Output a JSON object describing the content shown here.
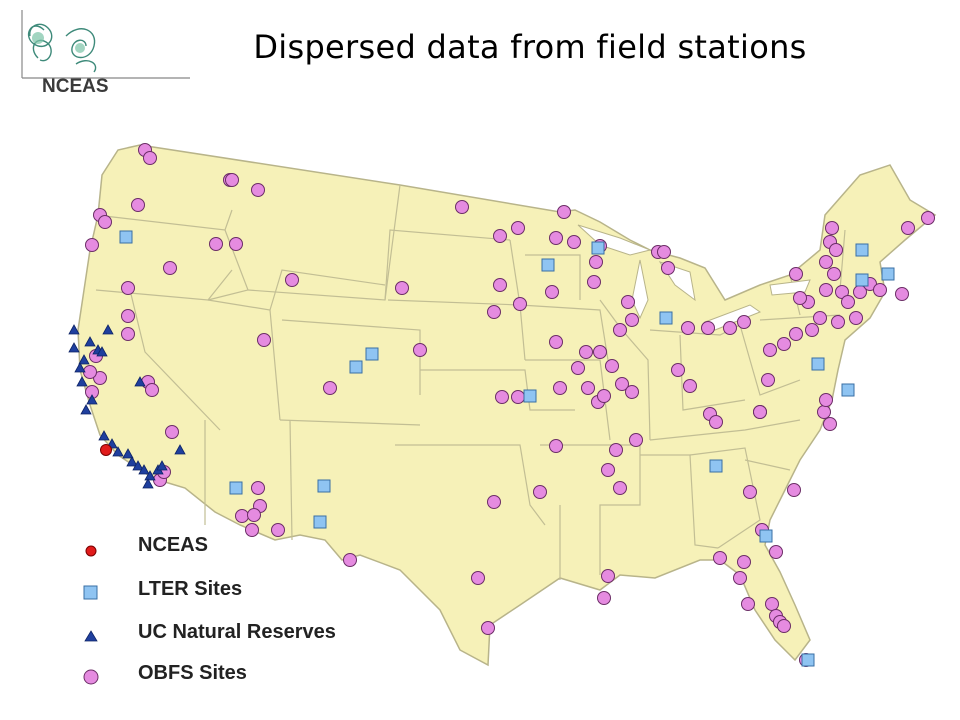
{
  "header": {
    "title": "Dispersed data from field stations",
    "logo_text": "NCEAS"
  },
  "colors": {
    "land": "#f6f1b8",
    "border": "#b8b48a",
    "obfs": "#e58be0",
    "lter": "#8fc4f2",
    "uc": "#1f3f9e",
    "nceas": "#e11b1b"
  },
  "legend": [
    {
      "label": "NCEAS",
      "marker": "red-dot"
    },
    {
      "label": "LTER Sites",
      "marker": "blue-square"
    },
    {
      "label": "UC Natural Reserves",
      "marker": "blue-triangle"
    },
    {
      "label": "OBFS Sites",
      "marker": "pink-dot"
    }
  ]
}
